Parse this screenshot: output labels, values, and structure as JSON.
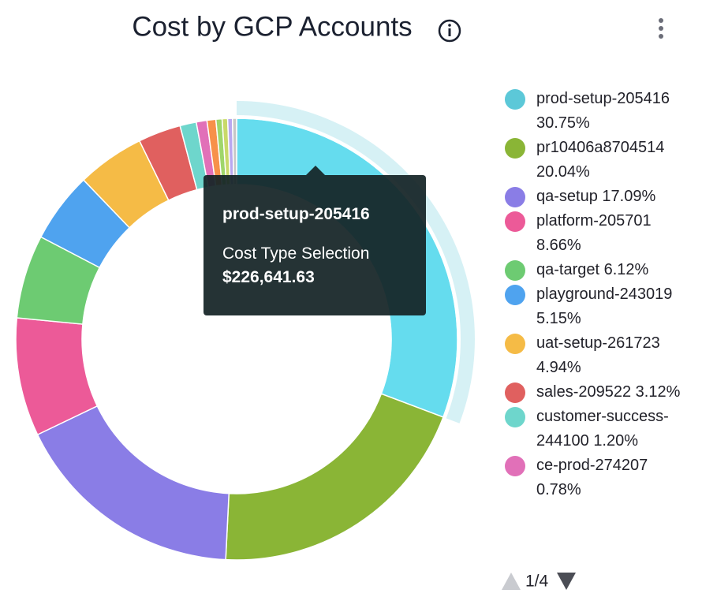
{
  "chart_data": {
    "type": "pie",
    "title": "Cost by GCP Accounts",
    "categories": [
      "prod-setup-205416",
      "pr10406a8704514",
      "qa-setup",
      "platform-205701",
      "qa-target",
      "playground-243019",
      "uat-setup-261723",
      "sales-209522",
      "customer-success-244100",
      "ce-prod-274207",
      null,
      null,
      null,
      null,
      null
    ],
    "values": [
      30.75,
      20.04,
      17.09,
      8.66,
      6.12,
      5.15,
      4.94,
      3.12,
      1.2,
      0.78,
      0.65,
      0.45,
      0.4,
      0.35,
      0.3
    ],
    "value_labels": [
      "30.75%",
      "20.04%",
      "17.09%",
      "8.66%",
      "6.12%",
      "5.15%",
      "4.94%",
      "3.12%",
      "1.20%",
      "0.78%",
      null,
      null,
      null,
      null,
      null
    ],
    "colors": [
      "#5cc8d8",
      "#8ab536",
      "#8a7de6",
      "#ec5a98",
      "#6dcb72",
      "#4fa3ef",
      "#f5bb46",
      "#e0605f",
      "#6ed6cc",
      "#e170b8",
      "#f7914a",
      "#9fd66a",
      "#c9d96a",
      "#b9a8ef",
      "#c7c7c7"
    ],
    "donut": true,
    "highlighted": 0,
    "tooltip": {
      "label": "Cost Type Selection",
      "amount": "$226,641.63"
    },
    "legend_page": "1/4"
  }
}
